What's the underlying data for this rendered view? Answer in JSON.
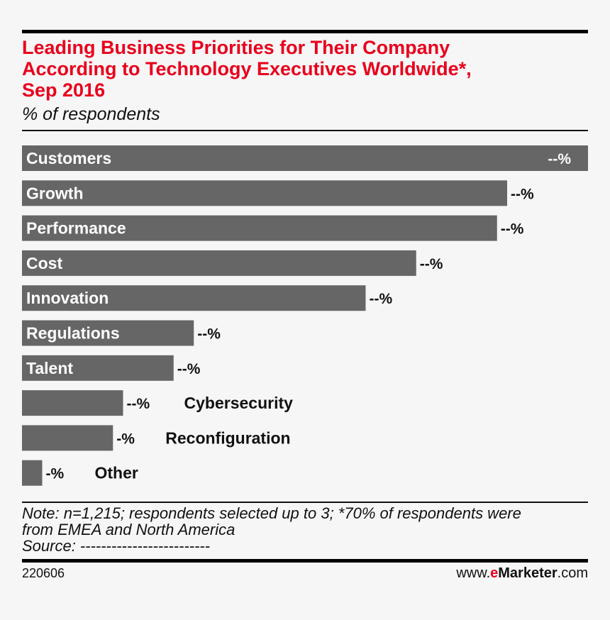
{
  "header": {
    "title_lines": [
      "Leading Business Priorities for Their Company",
      "According to Technology Executives Worldwide*,",
      "Sep 2016"
    ],
    "subtitle": "% of respondents"
  },
  "chart_data": {
    "type": "bar",
    "orientation": "horizontal",
    "title": "Leading Business Priorities for Their Company According to Technology Executives Worldwide*, Sep 2016",
    "subtitle": "% of respondents",
    "categories": [
      "Customers",
      "Growth",
      "Performance",
      "Cost",
      "Innovation",
      "Regulations",
      "Talent",
      "Cybersecurity",
      "Reconfiguration",
      "Other"
    ],
    "values": [
      56,
      48,
      47,
      39,
      34,
      17,
      15,
      10,
      9,
      2
    ],
    "value_labels": [
      "--%",
      "--%",
      "--%",
      "--%",
      "--%",
      "--%",
      "--%",
      "--%",
      "-%",
      "-%"
    ],
    "xlim": [
      0,
      56
    ],
    "grid": false,
    "legend": "none",
    "bar_color": "#666666"
  },
  "footer": {
    "note_lines": [
      "Note: n=1,215; respondents selected up to 3; *70% of respondents were",
      "from EMEA and North America",
      "Source: -------------------------"
    ],
    "chart_id": "220606",
    "brand_prefix": "www.",
    "brand_e": "e",
    "brand_name": "Marketer",
    "brand_suffix": ".com"
  },
  "colors": {
    "accent": "#e8001c",
    "bar": "#666666",
    "background": "#f6f6f6",
    "text": "#111111",
    "bar_label": "#ffffff"
  }
}
